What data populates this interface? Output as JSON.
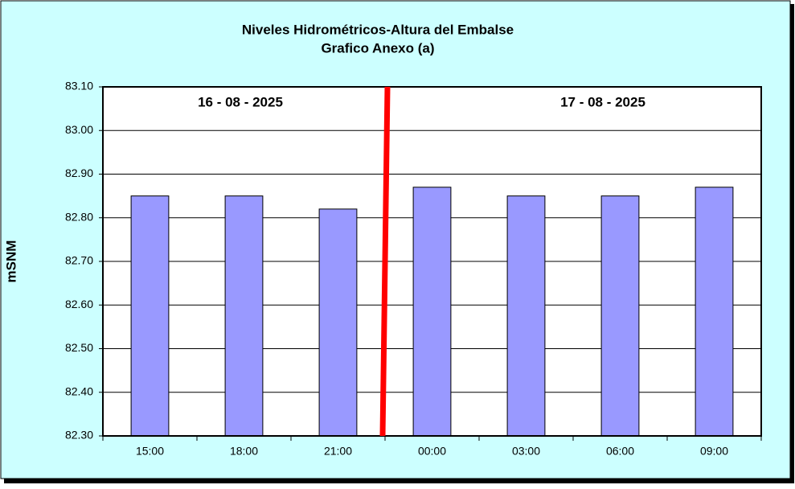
{
  "chart_data": {
    "type": "bar",
    "title": "Niveles Hidrométricos-Altura del Embalse",
    "subtitle": "Grafico Anexo (a)",
    "y_label": "mSNM",
    "annotations": [
      "16 - 08 - 2025",
      "17 - 08 - 2025"
    ],
    "categories": [
      "15:00",
      "18:00",
      "21:00",
      "00:00",
      "03:00",
      "06:00",
      "09:00"
    ],
    "values": [
      82.85,
      82.85,
      82.82,
      82.87,
      82.85,
      82.85,
      82.87
    ],
    "color": "#9999ff",
    "ylim": [
      82.3,
      83.1
    ],
    "yticks": [
      {
        "value": 82.3,
        "label": "82.30"
      },
      {
        "value": 82.4,
        "label": "82.40"
      },
      {
        "value": 82.5,
        "label": "82.50"
      },
      {
        "value": 82.6,
        "label": "82.60"
      },
      {
        "value": 82.7,
        "label": "82.70"
      },
      {
        "value": 82.8,
        "label": "82.80"
      },
      {
        "value": 82.9,
        "label": "82.90"
      },
      {
        "value": 83.0,
        "label": "83.00"
      },
      {
        "value": 83.1,
        "label": "83.10"
      }
    ],
    "grid": true
  }
}
